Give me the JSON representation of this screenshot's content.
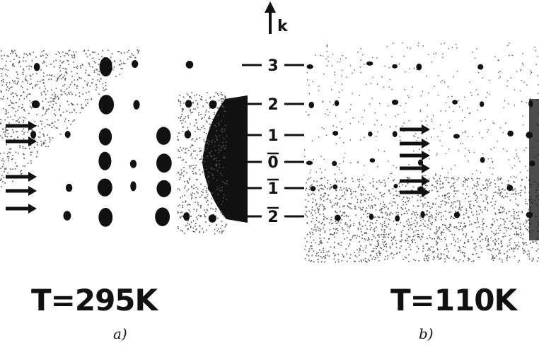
{
  "axis": {
    "label": "k",
    "levels": [
      {
        "text": "3",
        "overbar": false
      },
      {
        "text": "2",
        "overbar": false
      },
      {
        "text": "1",
        "overbar": false
      },
      {
        "text": "0",
        "overbar": true
      },
      {
        "text": "1",
        "overbar": true
      },
      {
        "text": "2",
        "overbar": true
      }
    ]
  },
  "panels": [
    {
      "temperature": "T=295K",
      "sublabel": "a)"
    },
    {
      "temperature": "T=110K",
      "sublabel": "b)"
    }
  ],
  "colors": {
    "ink": "#111111",
    "paper": "#ffffff",
    "noise": "#555555"
  }
}
